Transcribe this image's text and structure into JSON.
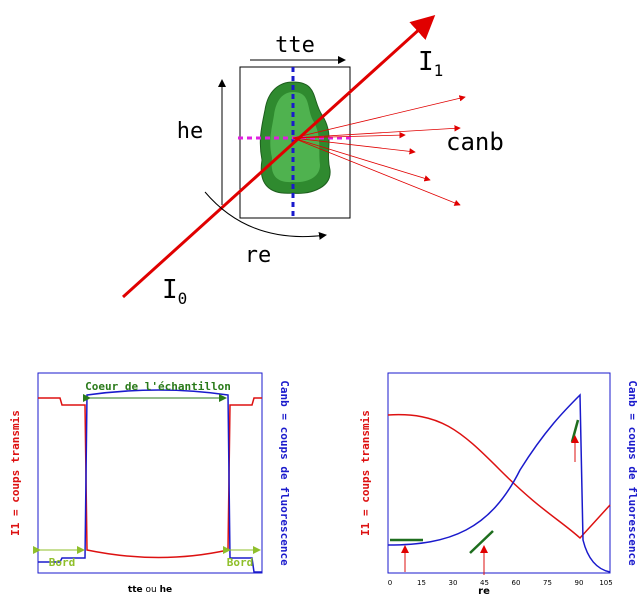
{
  "diagram": {
    "labels": {
      "tte": "tte",
      "i1": {
        "main": "I",
        "sub": "1"
      },
      "he": "he",
      "canb": "canb",
      "re": "re",
      "i0": {
        "main": "I",
        "sub": "0"
      }
    }
  },
  "left_plot": {
    "core_label": "Coeur de l'échantillon",
    "edge_left": "Bord",
    "edge_right": "Bord",
    "y_left_label": "I1 = coups transmis",
    "y_right_label": "Canb = coups de fluorescence",
    "x_label": {
      "part1": "tte",
      "part2": "ou",
      "part3": "he"
    }
  },
  "right_plot": {
    "x_ticks": [
      "0",
      "15",
      "30",
      "45",
      "60",
      "75",
      "90",
      "105"
    ],
    "x_label": "re",
    "y_left_label": "I1 = coups transmis",
    "y_right_label": "Canb = coups de fluorescence"
  }
}
